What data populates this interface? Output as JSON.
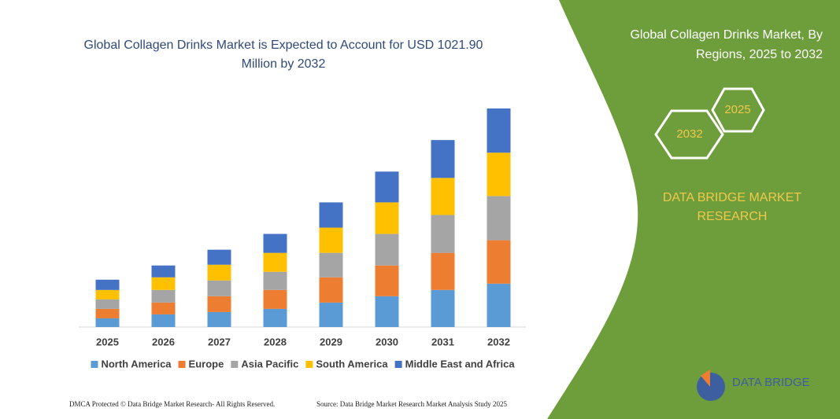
{
  "chart_data": {
    "type": "stacked-bar",
    "title": "Global Collagen Drinks Market is Expected to Account for USD 1021.90 Million by 2032",
    "categories": [
      "2025",
      "2026",
      "2027",
      "2028",
      "2029",
      "2030",
      "2031",
      "2032"
    ],
    "series": [
      {
        "name": "North America",
        "color": "#5b9bd5",
        "values": [
          11,
          16,
          19,
          23,
          31,
          39,
          47,
          55
        ]
      },
      {
        "name": "Europe",
        "color": "#ed7d31",
        "values": [
          12,
          15,
          20,
          24,
          32,
          39,
          47,
          55
        ]
      },
      {
        "name": "Asia Pacific",
        "color": "#a5a5a5",
        "values": [
          12,
          16,
          20,
          23,
          31,
          40,
          48,
          56
        ]
      },
      {
        "name": "South America",
        "color": "#ffc000",
        "values": [
          12,
          16,
          20,
          24,
          32,
          40,
          47,
          55
        ]
      },
      {
        "name": "Middle East and Africa",
        "color": "#4472c4",
        "values": [
          13,
          15,
          19,
          24,
          32,
          39,
          48,
          56
        ]
      }
    ]
  },
  "panel": {
    "title": [
      "Global Collagen Drinks Market, By",
      "Regions, 2025 to 2032"
    ],
    "badges": [
      "2025",
      "2032"
    ],
    "brand": [
      "DATA BRIDGE MARKET",
      "RESEARCH"
    ]
  },
  "logo": "DATA BRIDGE",
  "footer": {
    "left": "DMCA Protected © Data Bridge Market Research- All Rights Reserved.",
    "right": "Source: Data Bridge Market Research Market Analysis Study 2025"
  }
}
